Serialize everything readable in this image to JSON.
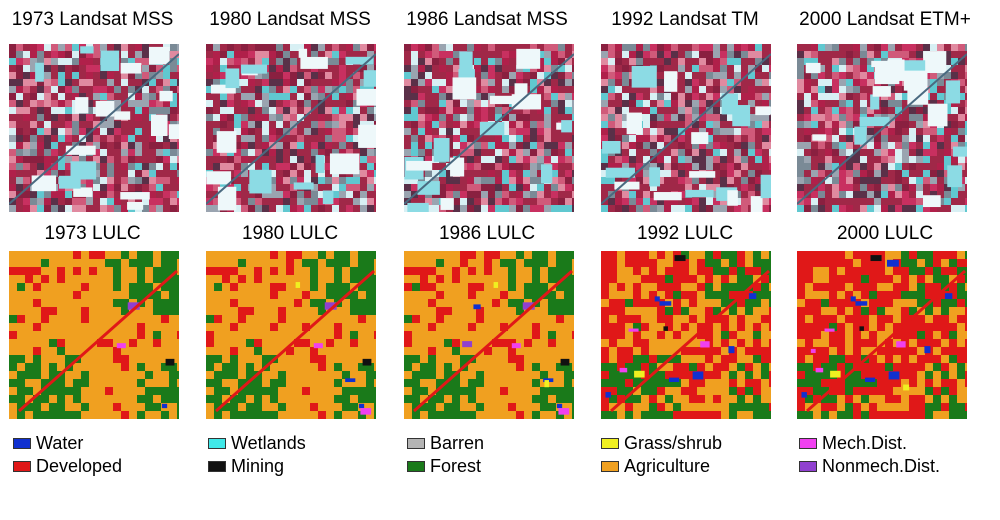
{
  "columns": [
    {
      "image_title": "1973 Landsat MSS",
      "lulc_title": "1973 LULC"
    },
    {
      "image_title": "1980 Landsat MSS",
      "lulc_title": "1980 LULC"
    },
    {
      "image_title": "1986 Landsat MSS",
      "lulc_title": "1986 LULC"
    },
    {
      "image_title": "1992 Landsat TM",
      "lulc_title": "1992 LULC"
    },
    {
      "image_title": "2000 Landsat ETM+",
      "lulc_title": "2000 LULC"
    }
  ],
  "legend": [
    {
      "label": "Water",
      "color": "#1030d0"
    },
    {
      "label": "Developed",
      "color": "#e01818"
    },
    {
      "label": "Wetlands",
      "color": "#40e8e8"
    },
    {
      "label": "Mining",
      "color": "#111111"
    },
    {
      "label": "Barren",
      "color": "#b4b4b4"
    },
    {
      "label": "Forest",
      "color": "#1a7a1a"
    },
    {
      "label": "Grass/shrub",
      "color": "#f0f020"
    },
    {
      "label": "Agriculture",
      "color": "#f0a020"
    },
    {
      "label": "Mech.Dist.",
      "color": "#f040f0"
    },
    {
      "label": "Nonmech.Dist.",
      "color": "#9040d0"
    }
  ]
}
